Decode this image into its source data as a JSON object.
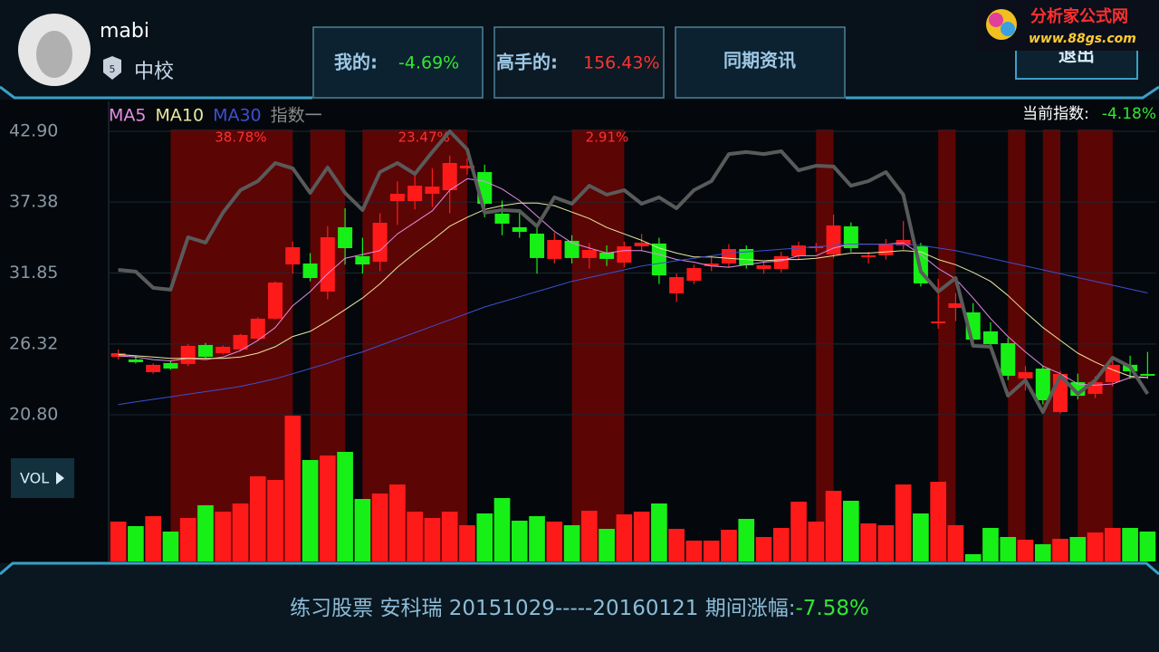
{
  "user": {
    "name": "mabi",
    "level": "5",
    "rank": "中校"
  },
  "tabs": [
    {
      "label": "我的:",
      "value": "-4.69%"
    },
    {
      "label": "高手的:",
      "value": "156.43%"
    },
    {
      "label": "同期资讯"
    }
  ],
  "logo": {
    "name": "分析家公式网",
    "url": "www.88gs.com"
  },
  "exit": "退出",
  "vol_button": "VOL",
  "footer": {
    "text": "练习股票 安科瑞 20151029-----20160121 期间涨幅:",
    "change": "-7.58%"
  },
  "chart_data": {
    "type": "candlestick",
    "ylim": [
      20.8,
      42.9
    ],
    "yticks": [
      {
        "value": 42.9,
        "label": "42.90"
      },
      37.38,
      31.85,
      26.32,
      {
        "value": 20.8,
        "label": "20.80"
      }
    ],
    "grid": true,
    "up_color": "#ff1a1a",
    "down_color": "#17f017",
    "current_index": {
      "label": "当前指数:",
      "value": "-4.18%"
    },
    "ohlc": [
      [
        25.32,
        25.88,
        25.11,
        25.6
      ],
      [
        25.11,
        25.4,
        24.8,
        24.9
      ],
      [
        24.12,
        24.8,
        24.0,
        24.69
      ],
      [
        24.83,
        25.0,
        24.3,
        24.4
      ],
      [
        24.76,
        26.3,
        24.6,
        26.17
      ],
      [
        26.24,
        26.4,
        25.2,
        25.32
      ],
      [
        25.6,
        26.2,
        25.5,
        26.1
      ],
      [
        25.89,
        27.1,
        25.8,
        27.02
      ],
      [
        26.73,
        28.4,
        26.6,
        28.29
      ],
      [
        28.29,
        31.2,
        28.2,
        31.11
      ],
      [
        32.52,
        34.3,
        31.8,
        33.86
      ],
      [
        32.59,
        33.4,
        31.2,
        31.46
      ],
      [
        30.4,
        35.5,
        29.8,
        34.64
      ],
      [
        35.42,
        36.9,
        32.5,
        33.79
      ],
      [
        33.16,
        34.6,
        31.8,
        32.52
      ],
      [
        32.73,
        36.5,
        32.0,
        35.77
      ],
      [
        37.46,
        39.0,
        35.6,
        38.03
      ],
      [
        37.46,
        39.5,
        36.8,
        38.66
      ],
      [
        38.03,
        40.0,
        37.0,
        38.59
      ],
      [
        38.31,
        41.0,
        36.5,
        40.43
      ],
      [
        40.01,
        40.8,
        39.5,
        40.22
      ],
      [
        39.72,
        40.3,
        36.2,
        37.25
      ],
      [
        36.48,
        37.5,
        34.8,
        35.7
      ],
      [
        35.42,
        36.6,
        34.6,
        35.06
      ],
      [
        34.92,
        35.4,
        31.8,
        33.02
      ],
      [
        32.95,
        35.0,
        32.6,
        34.43
      ],
      [
        34.36,
        34.8,
        32.6,
        33.02
      ],
      [
        33.02,
        34.2,
        32.2,
        33.65
      ],
      [
        33.44,
        34.0,
        32.4,
        32.95
      ],
      [
        32.66,
        34.3,
        32.3,
        33.93
      ],
      [
        33.93,
        34.9,
        33.6,
        34.22
      ],
      [
        34.15,
        34.6,
        31.0,
        31.67
      ],
      [
        30.26,
        31.8,
        29.6,
        31.53
      ],
      [
        31.25,
        32.5,
        31.0,
        32.24
      ],
      [
        32.38,
        33.1,
        32.0,
        32.59
      ],
      [
        32.59,
        34.1,
        32.3,
        33.72
      ],
      [
        33.72,
        34.0,
        32.2,
        32.45
      ],
      [
        32.17,
        32.7,
        31.8,
        32.45
      ],
      [
        32.17,
        33.5,
        31.9,
        33.16
      ],
      [
        33.16,
        34.3,
        32.9,
        34.0
      ],
      [
        33.79,
        34.2,
        33.5,
        33.93
      ],
      [
        33.3,
        36.4,
        33.0,
        35.56
      ],
      [
        35.49,
        35.8,
        33.5,
        33.79
      ],
      [
        33.09,
        33.5,
        32.6,
        33.23
      ],
      [
        33.23,
        34.5,
        32.9,
        34.15
      ],
      [
        34.0,
        35.9,
        33.7,
        34.43
      ],
      [
        33.93,
        34.2,
        30.8,
        31.04
      ],
      [
        27.93,
        31.4,
        27.5,
        28.07
      ],
      [
        29.13,
        30.3,
        28.1,
        29.49
      ],
      [
        28.78,
        29.5,
        26.3,
        26.66
      ],
      [
        27.3,
        28.0,
        25.9,
        26.31
      ],
      [
        26.38,
        26.8,
        23.5,
        23.84
      ],
      [
        23.63,
        24.6,
        22.7,
        24.12
      ],
      [
        24.4,
        24.6,
        21.6,
        21.93
      ],
      [
        21.01,
        24.2,
        20.9,
        23.98
      ],
      [
        23.34,
        24.0,
        22.0,
        22.28
      ],
      [
        22.43,
        23.8,
        22.1,
        23.34
      ],
      [
        23.34,
        25.0,
        23.0,
        24.69
      ],
      [
        24.69,
        25.4,
        23.6,
        24.19
      ],
      [
        23.98,
        25.7,
        23.6,
        23.84
      ]
    ],
    "vlim": [
      0,
      162
    ],
    "volume": [
      44,
      39,
      50,
      33,
      48,
      62,
      55,
      64,
      94,
      90,
      161,
      112,
      117,
      121,
      69,
      75,
      85,
      55,
      48,
      55,
      40,
      53,
      70,
      45,
      50,
      44,
      40,
      56,
      36,
      52,
      55,
      64,
      36,
      23,
      23,
      35,
      47,
      27,
      37,
      66,
      44,
      78,
      67,
      42,
      40,
      85,
      53,
      88,
      40,
      8,
      37,
      27,
      24,
      19,
      25,
      27,
      32,
      37,
      37,
      33
    ],
    "lines": [
      {
        "name": "MA5",
        "color": "#e58ee5",
        "width": 1,
        "values": [
          25.4,
          25.3,
          25.1,
          25.0,
          25.2,
          25.1,
          25.3,
          25.8,
          26.6,
          27.6,
          29.3,
          30.4,
          31.8,
          33.0,
          33.3,
          33.6,
          34.9,
          35.8,
          36.7,
          38.3,
          39.2,
          39.0,
          38.4,
          37.5,
          36.3,
          35.1,
          34.2,
          33.8,
          33.4,
          33.6,
          33.6,
          33.3,
          32.9,
          32.7,
          32.4,
          32.3,
          32.5,
          32.7,
          32.8,
          33.2,
          33.2,
          33.8,
          34.1,
          34.1,
          34.1,
          34.2,
          33.3,
          32.2,
          31.4,
          29.9,
          28.3,
          26.9,
          25.7,
          24.6,
          24.0,
          23.2,
          23.1,
          23.2,
          23.7,
          23.7
        ]
      },
      {
        "name": "MA10",
        "color": "#e8e8a0",
        "width": 1,
        "values": [
          25.5,
          25.4,
          25.3,
          25.2,
          25.2,
          25.2,
          25.2,
          25.3,
          25.6,
          26.1,
          26.9,
          27.3,
          28.1,
          29.0,
          29.9,
          31.0,
          32.3,
          33.4,
          34.4,
          35.5,
          36.2,
          36.8,
          37.1,
          37.3,
          37.3,
          37.1,
          36.6,
          36.1,
          35.4,
          34.9,
          34.4,
          33.8,
          33.4,
          33.1,
          33.1,
          33.0,
          32.9,
          32.8,
          32.9,
          32.9,
          33.0,
          33.2,
          33.4,
          33.4,
          33.5,
          33.6,
          33.5,
          32.9,
          32.5,
          31.9,
          31.2,
          30.1,
          28.8,
          27.6,
          26.6,
          25.6,
          24.9,
          24.3,
          23.8,
          23.7
        ]
      },
      {
        "name": "MA30",
        "color": "#3d4fd0",
        "width": 1,
        "values": [
          21.6,
          21.8,
          22.0,
          22.2,
          22.4,
          22.6,
          22.8,
          23.0,
          23.3,
          23.6,
          24.0,
          24.4,
          24.8,
          25.3,
          25.7,
          26.2,
          26.7,
          27.2,
          27.7,
          28.2,
          28.7,
          29.2,
          29.6,
          30.0,
          30.4,
          30.8,
          31.2,
          31.5,
          31.8,
          32.1,
          32.4,
          32.6,
          32.8,
          33.0,
          33.2,
          33.4,
          33.5,
          33.6,
          33.7,
          33.8,
          33.9,
          34.0,
          34.1,
          34.1,
          34.1,
          34.1,
          34.0,
          33.8,
          33.6,
          33.3,
          33.0,
          32.7,
          32.4,
          32.1,
          31.8,
          31.5,
          31.2,
          30.9,
          30.6,
          30.3
        ]
      },
      {
        "name": "指数一",
        "color": "#5a5a5a",
        "legend_color": "#8a8a8a",
        "width": 4,
        "values": [
          32.1,
          31.96,
          30.69,
          30.55,
          34.64,
          34.22,
          36.55,
          38.31,
          39.02,
          40.43,
          40.01,
          38.1,
          40.08,
          38.1,
          36.76,
          39.72,
          40.43,
          39.58,
          41.28,
          42.9,
          41.49,
          36.55,
          36.76,
          36.69,
          35.49,
          37.75,
          37.25,
          38.66,
          37.96,
          38.31,
          37.25,
          37.75,
          36.9,
          38.31,
          39.02,
          41.13,
          41.28,
          41.13,
          41.35,
          39.86,
          40.22,
          40.15,
          38.66,
          39.02,
          39.72,
          37.96,
          31.96,
          30.4,
          31.46,
          26.17,
          26.1,
          22.28,
          23.49,
          21.01,
          23.84,
          22.43,
          23.49,
          25.25,
          24.54,
          22.43
        ]
      }
    ],
    "periods": [
      {
        "start": 3,
        "end": 10,
        "label": "38.78%"
      },
      {
        "start": 11,
        "end": 13
      },
      {
        "start": 14,
        "end": 20,
        "label": "23.47%"
      },
      {
        "start": 26,
        "end": 29,
        "label": "2.91%"
      },
      {
        "start": 40,
        "end": 41
      },
      {
        "start": 47,
        "end": 48
      },
      {
        "start": 51,
        "end": 52
      },
      {
        "start": 53,
        "end": 54
      },
      {
        "start": 55,
        "end": 57
      }
    ],
    "period_color": "#5c0505"
  }
}
